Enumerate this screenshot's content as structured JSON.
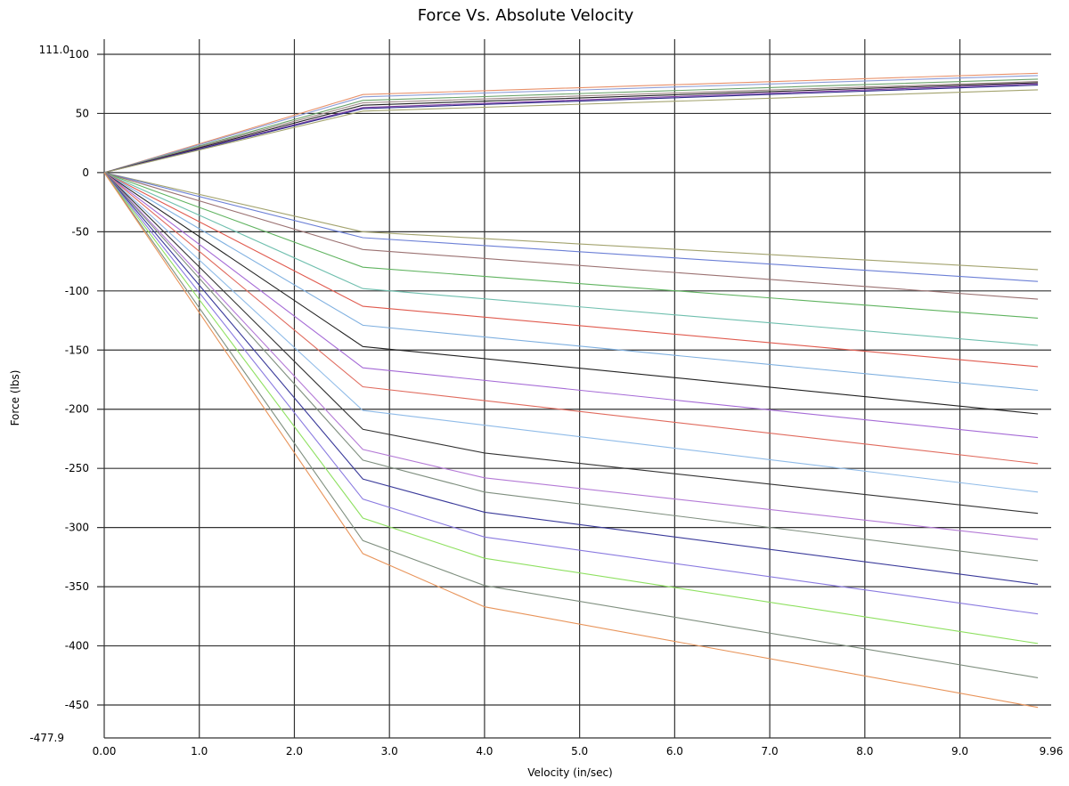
{
  "chart_data": {
    "type": "line",
    "title": "Force Vs. Absolute Velocity",
    "xlabel": "Velocity (in/sec)",
    "ylabel": "Force (lbs)",
    "xlim": [
      0,
      9.96
    ],
    "ylim": [
      -477.9,
      111.0
    ],
    "x_ticks": [
      {
        "value": 0,
        "label": "0.00"
      },
      {
        "value": 1,
        "label": "1.0"
      },
      {
        "value": 2,
        "label": "2.0"
      },
      {
        "value": 3,
        "label": "3.0"
      },
      {
        "value": 4,
        "label": "4.0"
      },
      {
        "value": 5,
        "label": "5.0"
      },
      {
        "value": 6,
        "label": "6.0"
      },
      {
        "value": 7,
        "label": "7.0"
      },
      {
        "value": 8,
        "label": "8.0"
      },
      {
        "value": 9,
        "label": "9.0"
      },
      {
        "value": 9.96,
        "label": "9.96"
      }
    ],
    "y_ticks": [
      {
        "value": 100,
        "label": "100"
      },
      {
        "value": 50,
        "label": "50"
      },
      {
        "value": 0,
        "label": "0"
      },
      {
        "value": -50,
        "label": "-50"
      },
      {
        "value": -100,
        "label": "-100"
      },
      {
        "value": -150,
        "label": "-150"
      },
      {
        "value": -200,
        "label": "-200"
      },
      {
        "value": -250,
        "label": "-250"
      },
      {
        "value": -300,
        "label": "-300"
      },
      {
        "value": -350,
        "label": "-350"
      },
      {
        "value": -400,
        "label": "-400"
      },
      {
        "value": -450,
        "label": "-450"
      }
    ],
    "y_extent_labels": [
      {
        "value": 111.0,
        "label": "111.0"
      },
      {
        "value": -477.9,
        "label": "-477.9"
      }
    ],
    "grid": true,
    "legend": "none",
    "series": [
      {
        "color": "#e8916a",
        "x": [
          0,
          2.72,
          9.82
        ],
        "y": [
          0,
          66,
          84
        ]
      },
      {
        "color": "#8a9bd6",
        "x": [
          0,
          2.72,
          9.82
        ],
        "y": [
          0,
          64,
          82
        ]
      },
      {
        "color": "#6aa36a",
        "x": [
          0,
          2.72,
          9.82
        ],
        "y": [
          0,
          61,
          79
        ]
      },
      {
        "color": "#9b8585",
        "x": [
          0,
          2.72,
          9.82
        ],
        "y": [
          0,
          59,
          77
        ]
      },
      {
        "color": "#222222",
        "x": [
          0,
          2.72,
          9.82
        ],
        "y": [
          0,
          57,
          76
        ]
      },
      {
        "color": "#7a3aa0",
        "x": [
          0,
          2.72,
          9.82
        ],
        "y": [
          0,
          55,
          75
        ]
      },
      {
        "color": "#2e2a8a",
        "x": [
          0,
          2.72,
          9.82
        ],
        "y": [
          0,
          54,
          74
        ]
      },
      {
        "color": "#a3a36e",
        "x": [
          0,
          2.72,
          9.82
        ],
        "y": [
          0,
          52,
          70
        ]
      },
      {
        "color": "#a3a36e",
        "x": [
          0,
          2.72,
          9.82
        ],
        "y": [
          0,
          -50,
          -82
        ]
      },
      {
        "color": "#6b7fd6",
        "x": [
          0,
          2.72,
          9.82
        ],
        "y": [
          0,
          -55,
          -92
        ]
      },
      {
        "color": "#9b7272",
        "x": [
          0,
          2.72,
          9.82
        ],
        "y": [
          0,
          -65,
          -107
        ]
      },
      {
        "color": "#5fb35f",
        "x": [
          0,
          2.72,
          9.82
        ],
        "y": [
          0,
          -80,
          -123
        ]
      },
      {
        "color": "#6fbfae",
        "x": [
          0,
          2.72,
          9.82
        ],
        "y": [
          0,
          -98,
          -146
        ]
      },
      {
        "color": "#e05a4e",
        "x": [
          0,
          2.72,
          9.82
        ],
        "y": [
          0,
          -113,
          -164
        ]
      },
      {
        "color": "#7fb0e0",
        "x": [
          0,
          2.72,
          9.82
        ],
        "y": [
          0,
          -129,
          -184
        ]
      },
      {
        "color": "#222222",
        "x": [
          0,
          2.72,
          9.82
        ],
        "y": [
          0,
          -147,
          -204
        ]
      },
      {
        "color": "#a56ad6",
        "x": [
          0,
          2.72,
          9.82
        ],
        "y": [
          0,
          -165,
          -224
        ]
      },
      {
        "color": "#e06b5e",
        "x": [
          0,
          2.72,
          9.82
        ],
        "y": [
          0,
          -181,
          -246
        ]
      },
      {
        "color": "#8fbbe8",
        "x": [
          0,
          2.72,
          9.82
        ],
        "y": [
          0,
          -201,
          -270
        ]
      },
      {
        "color": "#333333",
        "x": [
          0,
          2.72,
          4.0,
          9.82
        ],
        "y": [
          0,
          -217,
          -237,
          -288
        ]
      },
      {
        "color": "#b47ad6",
        "x": [
          0,
          2.72,
          4.0,
          9.82
        ],
        "y": [
          0,
          -234,
          -258,
          -310
        ]
      },
      {
        "color": "#7f8f7f",
        "x": [
          0,
          2.72,
          4.0,
          9.82
        ],
        "y": [
          0,
          -243,
          -270,
          -328
        ]
      },
      {
        "color": "#3a3a9a",
        "x": [
          0,
          2.72,
          4.0,
          9.82
        ],
        "y": [
          0,
          -259,
          -287,
          -348
        ]
      },
      {
        "color": "#8a7ae0",
        "x": [
          0,
          2.72,
          4.0,
          9.82
        ],
        "y": [
          0,
          -276,
          -308,
          -373
        ]
      },
      {
        "color": "#8ee060",
        "x": [
          0,
          2.72,
          4.0,
          9.82
        ],
        "y": [
          0,
          -292,
          -326,
          -398
        ]
      },
      {
        "color": "#7f8f7f",
        "x": [
          0,
          2.72,
          4.0,
          9.82
        ],
        "y": [
          0,
          -311,
          -349,
          -427
        ]
      },
      {
        "color": "#e8945a",
        "x": [
          0,
          2.72,
          4.0,
          9.82
        ],
        "y": [
          0,
          -322,
          -367,
          -452
        ]
      }
    ]
  }
}
